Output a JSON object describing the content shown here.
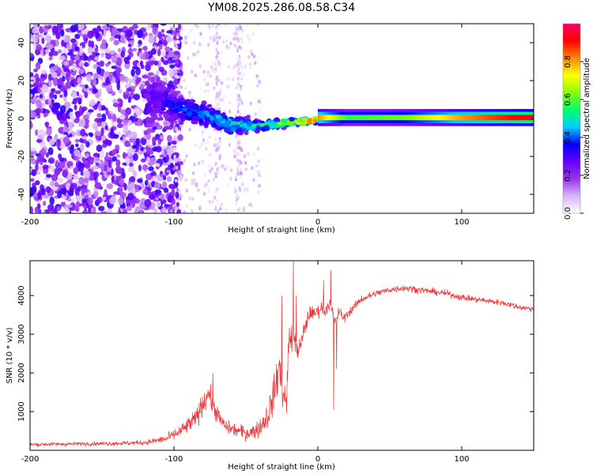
{
  "title": "YM08.2025.286.08.58.C34",
  "chart_data": [
    {
      "type": "heatmap",
      "name": "spectrogram",
      "xlabel": "Height of straight line (km)",
      "ylabel": "Frequency (Hz)",
      "xlim": [
        -200,
        150
      ],
      "ylim": [
        -50,
        50
      ],
      "xticks": [
        -200,
        -100,
        0,
        100
      ],
      "yticks": [
        -40,
        -20,
        0,
        20,
        40
      ],
      "colorbar": {
        "label": "Normalized spectral amplitude",
        "range": [
          0,
          1
        ],
        "ticks": [
          "0.0",
          "0.2",
          "0.4",
          "0.6",
          "0.8"
        ],
        "tick_values": [
          0.0,
          0.2,
          0.4,
          0.6,
          0.8
        ],
        "colors": [
          "#ffffff",
          "#d8b4f8",
          "#9933ee",
          "#6600ff",
          "#0000ff",
          "#00ccff",
          "#00ff66",
          "#88ff00",
          "#ffff00",
          "#ff8800",
          "#ff0000",
          "#ff0066"
        ]
      },
      "ridge": [
        {
          "x": -200,
          "center": 0,
          "spread": 48,
          "amp": 0.22
        },
        {
          "x": -140,
          "center": 5,
          "spread": 45,
          "amp": 0.25
        },
        {
          "x": -110,
          "center": 10,
          "spread": 20,
          "amp": 0.28
        },
        {
          "x": -100,
          "center": 6,
          "spread": 12,
          "amp": 0.35
        },
        {
          "x": -80,
          "center": 2,
          "spread": 10,
          "amp": 0.4
        },
        {
          "x": -60,
          "center": -3,
          "spread": 8,
          "amp": 0.45
        },
        {
          "x": -40,
          "center": -4,
          "spread": 4,
          "amp": 0.5
        },
        {
          "x": -20,
          "center": -2,
          "spread": 2.5,
          "amp": 0.65
        },
        {
          "x": 0,
          "center": -1,
          "spread": 2,
          "amp": 0.8
        },
        {
          "x": 20,
          "center": 0,
          "spread": 1.5,
          "amp": 0.55
        },
        {
          "x": 60,
          "center": 0.5,
          "spread": 1.5,
          "amp": 0.6
        },
        {
          "x": 100,
          "center": 0.5,
          "spread": 1.5,
          "amp": 0.8
        },
        {
          "x": 150,
          "center": 0.5,
          "spread": 1.5,
          "amp": 0.95
        }
      ]
    },
    {
      "type": "line",
      "name": "snr",
      "xlabel": "Height of straight line (km)",
      "ylabel": "SNR (10 * v/v)",
      "xlim": [
        -200,
        150
      ],
      "ylim": [
        0,
        4900
      ],
      "xticks": [
        -200,
        -100,
        0,
        100
      ],
      "yticks": [
        1000,
        2000,
        3000,
        4000
      ],
      "color": "#ee3333",
      "series": [
        {
          "name": "SNR",
          "x": [
            -200,
            -180,
            -160,
            -140,
            -120,
            -105,
            -95,
            -85,
            -80,
            -76,
            -72,
            -68,
            -64,
            -60,
            -55,
            -50,
            -45,
            -40,
            -35,
            -30,
            -27,
            -25,
            -22,
            -20,
            -18,
            -16,
            -14,
            -12,
            -10,
            -8,
            -5,
            -3,
            0,
            3,
            5,
            8,
            10,
            12,
            15,
            18,
            20,
            25,
            30,
            40,
            50,
            60,
            70,
            80,
            90,
            100,
            110,
            120,
            130,
            140,
            150
          ],
          "y": [
            150,
            160,
            170,
            180,
            200,
            300,
            500,
            800,
            1200,
            1500,
            1100,
            800,
            600,
            550,
            500,
            450,
            480,
            600,
            900,
            1500,
            2200,
            1600,
            1200,
            2800,
            3000,
            2800,
            2600,
            2700,
            3000,
            3300,
            3600,
            3500,
            3600,
            3700,
            3600,
            3800,
            3600,
            3300,
            3600,
            3400,
            3500,
            3700,
            3900,
            4050,
            4150,
            4200,
            4150,
            4100,
            4050,
            3950,
            3900,
            3850,
            3800,
            3700,
            3650
          ],
          "noise": [
            80,
            80,
            80,
            90,
            110,
            180,
            300,
            400,
            500,
            500,
            450,
            350,
            300,
            280,
            300,
            300,
            320,
            400,
            600,
            800,
            1000,
            800,
            700,
            900,
            800,
            500,
            450,
            450,
            450,
            400,
            300,
            300,
            300,
            250,
            300,
            300,
            300,
            250,
            250,
            200,
            200,
            180,
            160,
            150,
            150,
            150,
            150,
            140,
            140,
            140,
            130,
            130,
            130,
            130,
            120
          ],
          "spikes": [
            {
              "x": -73,
              "y": 2000
            },
            {
              "x": -25,
              "y": 4000
            },
            {
              "x": -17,
              "y": 4900
            },
            {
              "x": -15,
              "y": 4000
            },
            {
              "x": 4,
              "y": 4400
            },
            {
              "x": 9,
              "y": 4650
            },
            {
              "x": 11,
              "y": 1050
            },
            {
              "x": 13,
              "y": 2100
            }
          ]
        }
      ]
    }
  ]
}
